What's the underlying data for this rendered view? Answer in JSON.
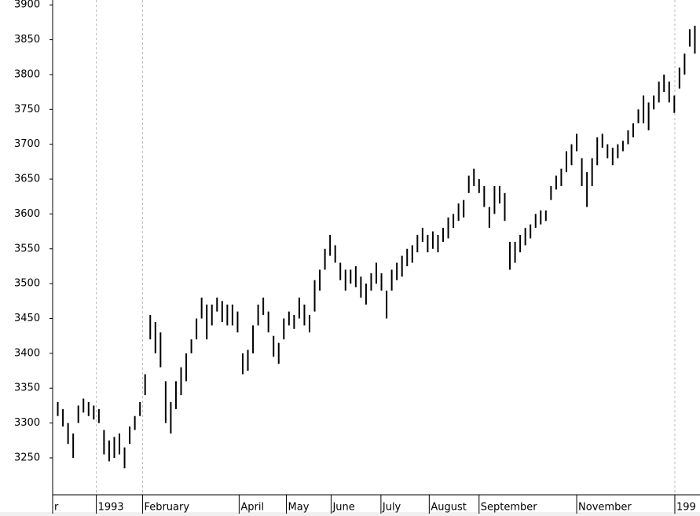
{
  "chart_data": {
    "type": "range-bar",
    "color": "#000000",
    "low": [
      3310,
      3295,
      3270,
      3250,
      3300,
      3315,
      3310,
      3305,
      3300,
      3255,
      3245,
      3250,
      3255,
      3235,
      3270,
      3290,
      3310,
      3340,
      3420,
      3400,
      3380,
      3300,
      3285,
      3320,
      3340,
      3360,
      3400,
      3420,
      3450,
      3420,
      3440,
      3460,
      3445,
      3440,
      3440,
      3430,
      3370,
      3375,
      3400,
      3440,
      3455,
      3430,
      3395,
      3385,
      3420,
      3440,
      3435,
      3450,
      3440,
      3430,
      3460,
      3490,
      3520,
      3540,
      3530,
      3505,
      3490,
      3500,
      3495,
      3480,
      3470,
      3490,
      3500,
      3490,
      3450,
      3490,
      3505,
      3510,
      3525,
      3530,
      3545,
      3560,
      3545,
      3550,
      3545,
      3560,
      3565,
      3580,
      3590,
      3595,
      3630,
      3640,
      3630,
      3610,
      3580,
      3600,
      3615,
      3590,
      3520,
      3530,
      3545,
      3555,
      3565,
      3580,
      3585,
      3590,
      3620,
      3635,
      3640,
      3660,
      3670,
      3690,
      3640,
      3610,
      3640,
      3670,
      3695,
      3680,
      3670,
      3680,
      3690,
      3700,
      3710,
      3730,
      3730,
      3720,
      3750,
      3760,
      3775,
      3760,
      3745,
      3780,
      3800,
      3840,
      3830
    ],
    "high": [
      3330,
      3320,
      3300,
      3285,
      3325,
      3335,
      3330,
      3325,
      3320,
      3290,
      3275,
      3280,
      3285,
      3265,
      3295,
      3310,
      3330,
      3370,
      3455,
      3445,
      3430,
      3360,
      3330,
      3360,
      3380,
      3400,
      3420,
      3450,
      3480,
      3470,
      3470,
      3480,
      3475,
      3470,
      3470,
      3460,
      3400,
      3405,
      3440,
      3470,
      3480,
      3460,
      3425,
      3415,
      3450,
      3460,
      3455,
      3480,
      3470,
      3455,
      3505,
      3520,
      3550,
      3570,
      3555,
      3530,
      3520,
      3520,
      3525,
      3510,
      3500,
      3515,
      3530,
      3515,
      3490,
      3520,
      3530,
      3540,
      3550,
      3555,
      3570,
      3580,
      3570,
      3575,
      3570,
      3580,
      3595,
      3600,
      3615,
      3620,
      3655,
      3665,
      3650,
      3640,
      3610,
      3640,
      3640,
      3630,
      3560,
      3560,
      3570,
      3580,
      3585,
      3600,
      3605,
      3605,
      3640,
      3655,
      3665,
      3690,
      3700,
      3715,
      3680,
      3660,
      3680,
      3710,
      3715,
      3700,
      3695,
      3700,
      3705,
      3720,
      3730,
      3750,
      3770,
      3760,
      3770,
      3790,
      3800,
      3790,
      3770,
      3810,
      3830,
      3865,
      3870
    ],
    "xlim": [
      -1,
      125
    ],
    "xticks": [
      {
        "value": -1,
        "label": "r"
      },
      {
        "value": 7.5,
        "label": "1993",
        "dashed": true
      },
      {
        "value": 16.5,
        "label": "February",
        "dashed": true
      },
      {
        "value": 35.3,
        "label": "April"
      },
      {
        "value": 44.5,
        "label": "May"
      },
      {
        "value": 53.2,
        "label": "June"
      },
      {
        "value": 62.9,
        "label": "July"
      },
      {
        "value": 72.3,
        "label": "August"
      },
      {
        "value": 82,
        "label": "September"
      },
      {
        "value": 101,
        "label": "November"
      },
      {
        "value": 120.1,
        "label": "199",
        "dashed": true
      }
    ],
    "ylim": [
      3197,
      3907
    ],
    "yticks": [
      3250,
      3300,
      3350,
      3400,
      3450,
      3500,
      3550,
      3600,
      3650,
      3700,
      3750,
      3800,
      3850,
      3900
    ]
  }
}
